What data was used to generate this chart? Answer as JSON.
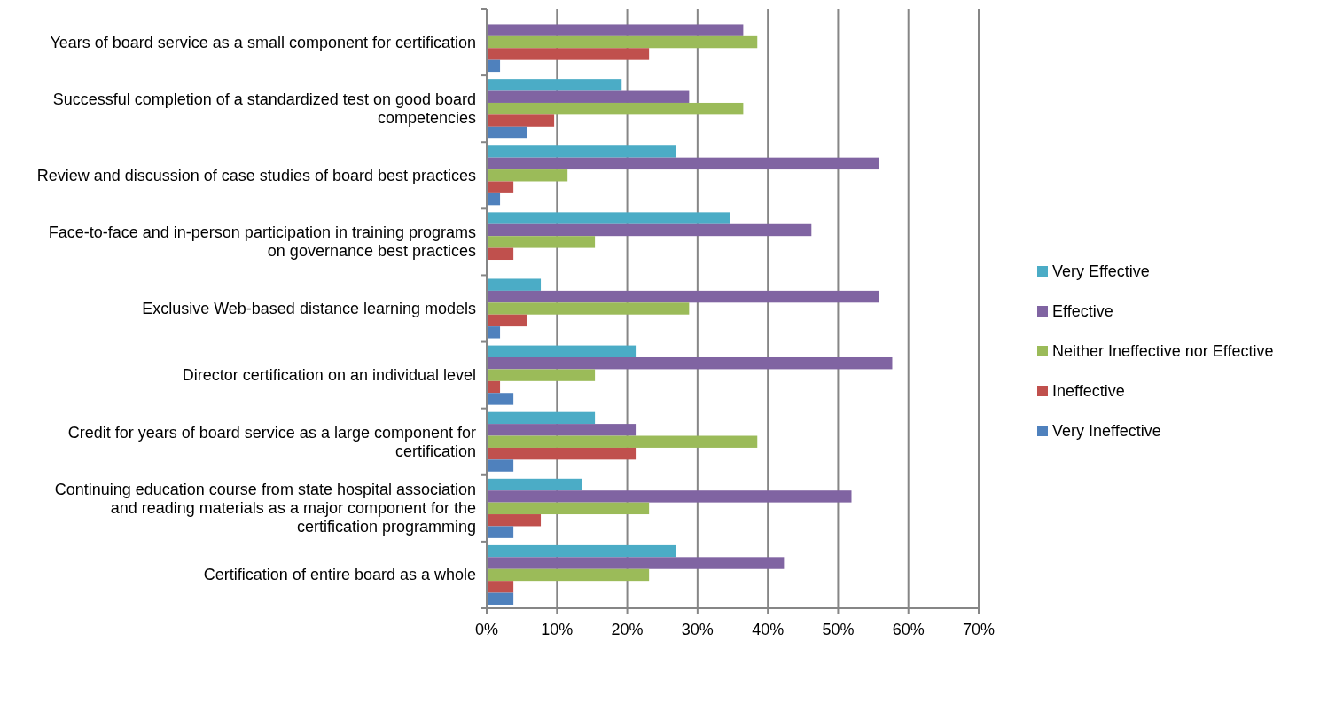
{
  "chart_data": {
    "type": "bar",
    "orientation": "horizontal",
    "categories": [
      "Years of board service as a small component for certification",
      "Successful completion of a standardized test on good board competencies",
      "Review and discussion of case studies of board best practices",
      "Face-to-face and in-person participation in training programs on governance best practices",
      "Exclusive Web-based distance learning models",
      "Director certification on an individual level",
      "Credit for years of board service as a large component for certification",
      "Continuing education course from state hospital association and reading materials as a major component for the certification programming",
      "Certification of entire board as a whole"
    ],
    "series": [
      {
        "name": "Very Effective",
        "color": "#4bacc6",
        "values": [
          0,
          19.2,
          26.9,
          34.6,
          7.7,
          21.2,
          15.4,
          13.5,
          26.9
        ]
      },
      {
        "name": "Effective",
        "color": "#8064a2",
        "values": [
          36.5,
          28.8,
          55.8,
          46.2,
          55.8,
          57.7,
          21.2,
          51.9,
          42.3
        ]
      },
      {
        "name": "Neither Ineffective nor Effective",
        "color": "#9bbb59",
        "values": [
          38.5,
          36.5,
          11.5,
          15.4,
          28.8,
          15.4,
          38.5,
          23.1,
          23.1
        ]
      },
      {
        "name": "Ineffective",
        "color": "#c0504d",
        "values": [
          23.1,
          9.6,
          3.8,
          3.8,
          5.8,
          1.9,
          21.2,
          7.7,
          3.8
        ]
      },
      {
        "name": "Very Ineffective",
        "color": "#4f81bd",
        "values": [
          1.9,
          5.8,
          1.9,
          0,
          1.9,
          3.8,
          3.8,
          3.8,
          3.8
        ]
      }
    ],
    "xlim": [
      0,
      70
    ],
    "xticks": [
      {
        "value": 0,
        "label": "0%"
      },
      {
        "value": 10,
        "label": "10%"
      },
      {
        "value": 20,
        "label": "20%"
      },
      {
        "value": 30,
        "label": "30%"
      },
      {
        "value": 40,
        "label": "40%"
      },
      {
        "value": 50,
        "label": "50%"
      },
      {
        "value": 60,
        "label": "60%"
      },
      {
        "value": 70,
        "label": "70%"
      }
    ],
    "grid": "x",
    "legend": "right"
  }
}
